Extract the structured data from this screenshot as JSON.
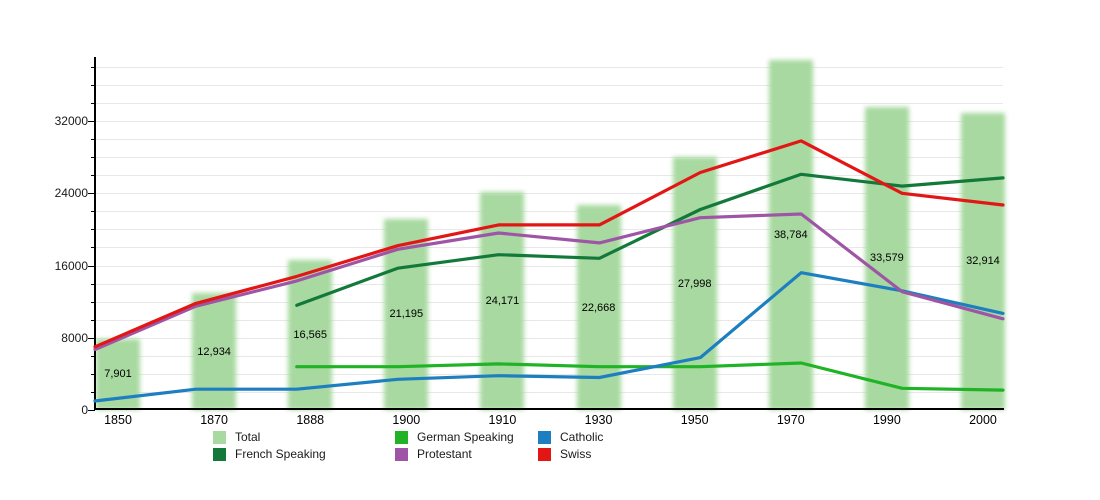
{
  "chart_data": {
    "type": "bar",
    "note": "combo chart: Total as blurred green columns with value labels, five line series overlaid",
    "categories": [
      "1850",
      "1870",
      "1888",
      "1900",
      "1910",
      "1930",
      "1950",
      "1970",
      "1990",
      "2000"
    ],
    "bars": {
      "name": "Total",
      "color": "#a8d9a0",
      "values": [
        7901,
        12934,
        16565,
        21195,
        24171,
        22668,
        27998,
        38784,
        33579,
        32914
      ],
      "labels": [
        "7,901",
        "12,934",
        "16,565",
        "21,195",
        "24,171",
        "22,668",
        "27,998",
        "38,784",
        "33,579",
        "32,914"
      ]
    },
    "series": [
      {
        "name": "German Speaking",
        "color": "#1fb325",
        "values": [
          null,
          null,
          4800,
          4800,
          5100,
          4800,
          4800,
          5200,
          2400,
          2200
        ]
      },
      {
        "name": "French Speaking",
        "color": "#13793b",
        "values": [
          null,
          null,
          11600,
          15700,
          17200,
          16800,
          22200,
          26100,
          24800,
          25700
        ]
      },
      {
        "name": "Catholic",
        "color": "#1d7fc0",
        "values": [
          1000,
          2300,
          2300,
          3400,
          3800,
          3600,
          5800,
          15200,
          13200,
          10700
        ]
      },
      {
        "name": "Protestant",
        "color": "#9e55a5",
        "values": [
          6700,
          11500,
          14300,
          17800,
          19600,
          18500,
          21300,
          21700,
          13100,
          10100
        ]
      },
      {
        "name": "Swiss",
        "color": "#e31616",
        "values": [
          7000,
          11800,
          14800,
          18200,
          20500,
          20500,
          26300,
          29800,
          24000,
          22700
        ]
      }
    ],
    "y_axis": {
      "tick_labels": [
        "0",
        "8000",
        "16000",
        "24000",
        "32000"
      ],
      "ticks": [
        0,
        8000,
        16000,
        24000,
        32000
      ],
      "minor_step": 2000,
      "max": 38870
    },
    "xlabel": "",
    "ylabel": "",
    "title": "",
    "grid": true,
    "legend_position": "bottom"
  },
  "legend": {
    "items": [
      {
        "label": "Total",
        "color": "#a8d9a0",
        "col": 0,
        "row": 0
      },
      {
        "label": "French Speaking",
        "color": "#13793b",
        "col": 0,
        "row": 1
      },
      {
        "label": "German Speaking",
        "color": "#1fb325",
        "col": 1,
        "row": 0
      },
      {
        "label": "Protestant",
        "color": "#9e55a5",
        "col": 1,
        "row": 1
      },
      {
        "label": "Catholic",
        "color": "#1d7fc0",
        "col": 2,
        "row": 0
      },
      {
        "label": "Swiss",
        "color": "#e31616",
        "col": 2,
        "row": 1
      }
    ]
  }
}
